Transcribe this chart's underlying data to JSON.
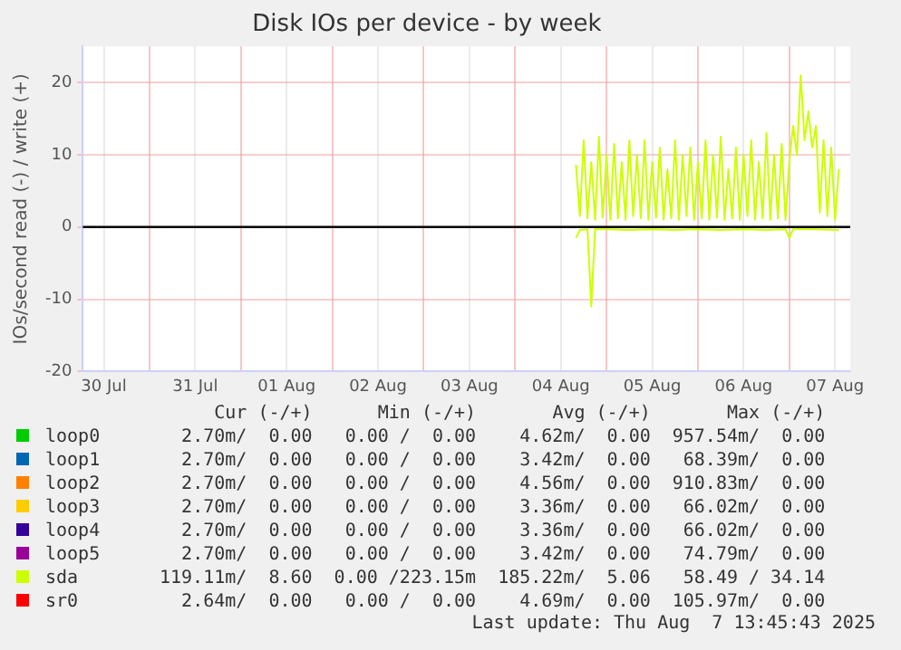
{
  "chart_data": {
    "type": "line",
    "title": "Disk IOs per device - by week",
    "ylabel": "IOs/second read (-) / write (+)",
    "xlim": [
      "2025-07-30T06:30",
      "2025-08-07T16:00"
    ],
    "xticks": [
      {
        "value": "2025-07-30T12:00",
        "label": "30 Jul"
      },
      {
        "value": "2025-07-31T00:00",
        "label": null
      },
      {
        "value": "2025-07-31T12:00",
        "label": "31 Jul"
      },
      {
        "value": "2025-08-01T00:00",
        "label": null
      },
      {
        "value": "2025-08-01T12:00",
        "label": "01 Aug"
      },
      {
        "value": "2025-08-02T00:00",
        "label": null
      },
      {
        "value": "2025-08-02T12:00",
        "label": "02 Aug"
      },
      {
        "value": "2025-08-03T00:00",
        "label": null
      },
      {
        "value": "2025-08-03T12:00",
        "label": "03 Aug"
      },
      {
        "value": "2025-08-04T00:00",
        "label": null
      },
      {
        "value": "2025-08-04T12:00",
        "label": "04 Aug"
      },
      {
        "value": "2025-08-05T00:00",
        "label": null
      },
      {
        "value": "2025-08-05T12:00",
        "label": "05 Aug"
      },
      {
        "value": "2025-08-06T00:00",
        "label": null
      },
      {
        "value": "2025-08-06T12:00",
        "label": "06 Aug"
      },
      {
        "value": "2025-08-07T00:00",
        "label": null
      },
      {
        "value": "2025-08-07T12:00",
        "label": "07 Aug"
      }
    ],
    "ylim": [
      -20,
      25
    ],
    "yticks": [
      -20,
      -10,
      0,
      10,
      20
    ],
    "grid": true,
    "legend": "bottom",
    "marker": "none",
    "line_style": "solid",
    "ref_lines": [
      {
        "axis": "y",
        "value": 0,
        "color": "#000000"
      }
    ],
    "series": [
      {
        "name": "loop0",
        "color": "#00cc00"
      },
      {
        "name": "loop1",
        "color": "#0066b3"
      },
      {
        "name": "loop2",
        "color": "#ff8000"
      },
      {
        "name": "loop3",
        "color": "#ffcc00"
      },
      {
        "name": "loop4",
        "color": "#330099"
      },
      {
        "name": "loop5",
        "color": "#990099"
      },
      {
        "name": "sda",
        "color": "#ccff00",
        "x": [
          "2025-08-04T16:00",
          "2025-08-04T17:00",
          "2025-08-04T18:00",
          "2025-08-04T19:00",
          "2025-08-04T20:00",
          "2025-08-04T21:00",
          "2025-08-04T22:00",
          "2025-08-04T23:00",
          "2025-08-05T00:00",
          "2025-08-05T01:00",
          "2025-08-05T02:00",
          "2025-08-05T03:00",
          "2025-08-05T04:00",
          "2025-08-05T05:00",
          "2025-08-05T06:00",
          "2025-08-05T07:00",
          "2025-08-05T08:00",
          "2025-08-05T09:00",
          "2025-08-05T10:00",
          "2025-08-05T11:00",
          "2025-08-05T12:00",
          "2025-08-05T13:00",
          "2025-08-05T14:00",
          "2025-08-05T15:00",
          "2025-08-05T16:00",
          "2025-08-05T17:00",
          "2025-08-05T18:00",
          "2025-08-05T19:00",
          "2025-08-05T20:00",
          "2025-08-05T21:00",
          "2025-08-05T22:00",
          "2025-08-05T23:00",
          "2025-08-06T00:00",
          "2025-08-06T01:00",
          "2025-08-06T02:00",
          "2025-08-06T03:00",
          "2025-08-06T04:00",
          "2025-08-06T05:00",
          "2025-08-06T06:00",
          "2025-08-06T07:00",
          "2025-08-06T08:00",
          "2025-08-06T09:00",
          "2025-08-06T10:00",
          "2025-08-06T11:00",
          "2025-08-06T12:00",
          "2025-08-06T13:00",
          "2025-08-06T14:00",
          "2025-08-06T15:00",
          "2025-08-06T16:00",
          "2025-08-06T17:00",
          "2025-08-06T18:00",
          "2025-08-06T19:00",
          "2025-08-06T20:00",
          "2025-08-06T21:00",
          "2025-08-06T22:00",
          "2025-08-06T23:00",
          "2025-08-07T00:00",
          "2025-08-07T01:00",
          "2025-08-07T02:00",
          "2025-08-07T03:00",
          "2025-08-07T04:00",
          "2025-08-07T05:00",
          "2025-08-07T06:00",
          "2025-08-07T07:00",
          "2025-08-07T08:00",
          "2025-08-07T09:00",
          "2025-08-07T10:00",
          "2025-08-07T11:00",
          "2025-08-07T12:00",
          "2025-08-07T13:00"
        ],
        "values": [
          8.6,
          1.5,
          12,
          1.2,
          9,
          1,
          12.5,
          1.3,
          10,
          1,
          11.5,
          1.2,
          9,
          1,
          12,
          1.5,
          10,
          1.2,
          12,
          1,
          9,
          1.3,
          11,
          1,
          8,
          1.2,
          12,
          1,
          10,
          1.5,
          11,
          1,
          9,
          1.2,
          12,
          1,
          10,
          1.3,
          12.5,
          1,
          8,
          1.2,
          11,
          1,
          10,
          1.5,
          12,
          1,
          9,
          1.2,
          13,
          1,
          10,
          1.2,
          11.5,
          1,
          9,
          14,
          10,
          21,
          12,
          16,
          11,
          14,
          2,
          12,
          1.5,
          11,
          1,
          8
        ]
      },
      {
        "color": "#ccff00",
        "x": [
          "2025-08-04T16:00",
          "2025-08-04T17:00",
          "2025-08-04T19:00",
          "2025-08-04T20:00",
          "2025-08-04T21:00",
          "2025-08-05T00:00",
          "2025-08-05T06:00",
          "2025-08-05T12:00",
          "2025-08-05T18:00",
          "2025-08-06T00:00",
          "2025-08-06T06:00",
          "2025-08-06T12:00",
          "2025-08-06T18:00",
          "2025-08-06T23:00",
          "2025-08-07T00:00",
          "2025-08-07T01:00",
          "2025-08-07T06:00",
          "2025-08-07T13:00"
        ],
        "values": [
          -1.5,
          -0.4,
          -0.3,
          -11,
          -0.3,
          -0.3,
          -0.4,
          -0.3,
          -0.4,
          -0.3,
          -0.4,
          -0.3,
          -0.4,
          -0.3,
          -1.5,
          -0.3,
          -0.3,
          -0.4
        ]
      },
      {
        "name": "sr0",
        "color": "#ff0000"
      }
    ],
    "annotations": [
      "Cur (-/+)",
      "Min (-/+)",
      "Avg (-/+)",
      "Max (-/+)",
      "2.70m/  0.00",
      "0.00 /  0.00",
      "4.62m/  0.00",
      "957.54m/  0.00",
      "2.70m/  0.00",
      "0.00 /  0.00",
      "3.42m/  0.00",
      "68.39m/  0.00",
      "2.70m/  0.00",
      "0.00 /  0.00",
      "4.56m/  0.00",
      "910.83m/  0.00",
      "2.70m/  0.00",
      "0.00 /  0.00",
      "3.36m/  0.00",
      "66.02m/  0.00",
      "2.70m/  0.00",
      "0.00 /  0.00",
      "3.36m/  0.00",
      "66.02m/  0.00",
      "2.70m/  0.00",
      "0.00 /  0.00",
      "3.42m/  0.00",
      "74.79m/  0.00",
      "119.11m/  8.60",
      "0.00 /223.15m",
      "185.22m/  5.06",
      "58.49 / 34.14",
      "2.64m/  0.00",
      "0.00 /  0.00",
      "4.69m/  0.00",
      "105.97m/  0.00",
      "Last update: Thu Aug  7 13:45:43 2025"
    ]
  }
}
